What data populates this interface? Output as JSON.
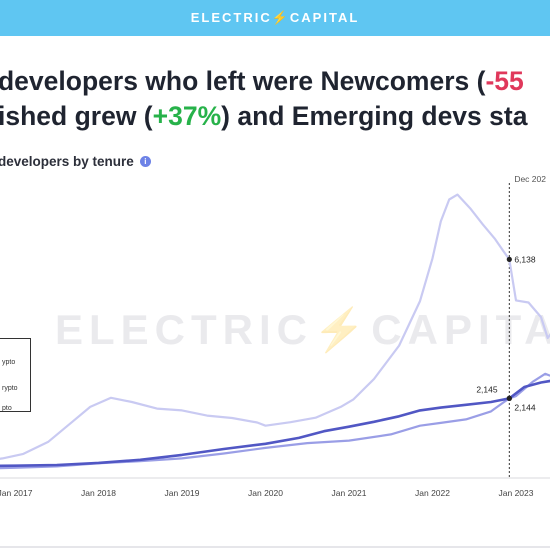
{
  "banner": {
    "brand": "ELECTRIC⚡CAPITAL"
  },
  "headline": {
    "line1_prefix": "developers who left were Newcomers (",
    "line1_value": "-55",
    "line2_prefix": "ished grew (",
    "line2_value": "+37%",
    "line2_suffix": ") and Emerging devs sta"
  },
  "subtitle": {
    "text": "developers by tenure",
    "info_icon": "info-icon"
  },
  "watermark": "ELECTRIC⚡CAPITAL",
  "legend": [
    "ypto",
    "rypto",
    "pto"
  ],
  "colors": {
    "banner": "#5fc6f2",
    "newcomers": "#c9caf2",
    "emerging": "#9a9ee6",
    "established": "#5157c4",
    "negative": "#e0385b",
    "positive": "#27b24a"
  },
  "chart_data": {
    "type": "line",
    "x_ticks": [
      "Jan 2017",
      "Jan 2018",
      "Jan 2019",
      "Jan 2020",
      "Jan 2021",
      "Jan 2022",
      "Jan 2023"
    ],
    "marker_label": "Dec 202",
    "annotations": [
      {
        "label": "6,138",
        "x": 2022.92,
        "y": 6138
      },
      {
        "label": "2,145",
        "x": 2022.92,
        "y": 2145
      },
      {
        "label": "2,144",
        "x": 2022.92,
        "y": 2144
      }
    ],
    "series": [
      {
        "color": "#c9caf2",
        "points": [
          [
            2016.5,
            300
          ],
          [
            2016.85,
            420
          ],
          [
            2017.1,
            550
          ],
          [
            2017.4,
            900
          ],
          [
            2017.7,
            1500
          ],
          [
            2017.9,
            1900
          ],
          [
            2018.15,
            2160
          ],
          [
            2018.4,
            2040
          ],
          [
            2018.7,
            1850
          ],
          [
            2019.0,
            1800
          ],
          [
            2019.3,
            1650
          ],
          [
            2019.6,
            1580
          ],
          [
            2019.9,
            1450
          ],
          [
            2020.0,
            1360
          ],
          [
            2020.3,
            1460
          ],
          [
            2020.6,
            1590
          ],
          [
            2020.9,
            1900
          ],
          [
            2021.05,
            2110
          ],
          [
            2021.3,
            2700
          ],
          [
            2021.6,
            3660
          ],
          [
            2021.85,
            4940
          ],
          [
            2022.0,
            6170
          ],
          [
            2022.1,
            7230
          ],
          [
            2022.2,
            7860
          ],
          [
            2022.3,
            8000
          ],
          [
            2022.45,
            7610
          ],
          [
            2022.6,
            7150
          ],
          [
            2022.75,
            6720
          ],
          [
            2022.85,
            6370
          ],
          [
            2022.92,
            6138
          ],
          [
            2023.0,
            4960
          ],
          [
            2023.15,
            4900
          ],
          [
            2023.3,
            4480
          ],
          [
            2023.38,
            3880
          ],
          [
            2023.45,
            4100
          ]
        ]
      },
      {
        "color": "#9a9ee6",
        "points": [
          [
            2016.5,
            120
          ],
          [
            2017.0,
            150
          ],
          [
            2017.5,
            190
          ],
          [
            2018.0,
            280
          ],
          [
            2018.5,
            340
          ],
          [
            2019.0,
            420
          ],
          [
            2019.5,
            560
          ],
          [
            2020.0,
            720
          ],
          [
            2020.5,
            860
          ],
          [
            2021.0,
            930
          ],
          [
            2021.5,
            1110
          ],
          [
            2021.85,
            1360
          ],
          [
            2022.1,
            1440
          ],
          [
            2022.4,
            1540
          ],
          [
            2022.7,
            1770
          ],
          [
            2022.85,
            2030
          ],
          [
            2022.92,
            2144
          ],
          [
            2023.0,
            2210
          ],
          [
            2023.2,
            2620
          ],
          [
            2023.35,
            2850
          ],
          [
            2023.45,
            2760
          ]
        ]
      },
      {
        "color": "#5157c4",
        "points": [
          [
            2016.5,
            200
          ],
          [
            2017.0,
            210
          ],
          [
            2017.5,
            230
          ],
          [
            2018.0,
            290
          ],
          [
            2018.5,
            380
          ],
          [
            2019.0,
            520
          ],
          [
            2019.5,
            690
          ],
          [
            2020.0,
            840
          ],
          [
            2020.4,
            1010
          ],
          [
            2020.7,
            1200
          ],
          [
            2021.0,
            1330
          ],
          [
            2021.3,
            1470
          ],
          [
            2021.6,
            1630
          ],
          [
            2021.85,
            1800
          ],
          [
            2022.1,
            1880
          ],
          [
            2022.4,
            1960
          ],
          [
            2022.7,
            2040
          ],
          [
            2022.92,
            2145
          ],
          [
            2023.1,
            2470
          ],
          [
            2023.3,
            2600
          ],
          [
            2023.45,
            2660
          ]
        ]
      }
    ]
  }
}
